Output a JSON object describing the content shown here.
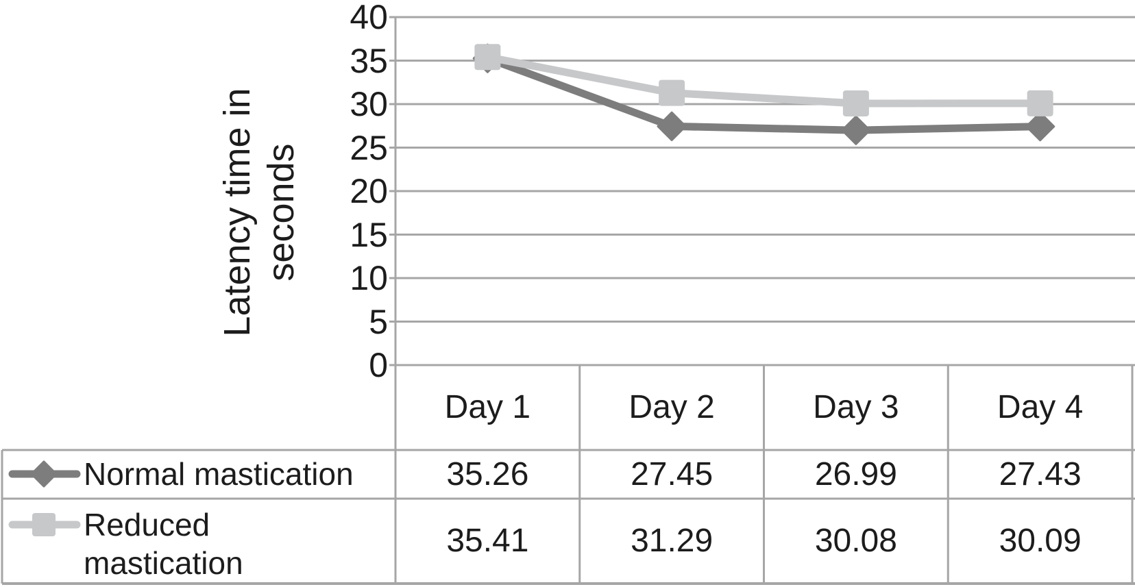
{
  "chart_data": {
    "type": "line",
    "title": "",
    "xlabel": "",
    "ylabel": "Latency time in seconds",
    "categories": [
      "Day 1",
      "Day 2",
      "Day 3",
      "Day 4"
    ],
    "series": [
      {
        "name": "Normal mastication",
        "values": [
          35.26,
          27.45,
          26.99,
          27.43
        ],
        "display_values": [
          "35.26",
          "27.45",
          "26.99",
          "27.43"
        ],
        "color": "#7d7d7d",
        "marker": "diamond"
      },
      {
        "name": "Reduced mastication",
        "values": [
          35.41,
          31.29,
          30.08,
          30.09
        ],
        "display_values": [
          "35.41",
          "31.29",
          "30.08",
          "30.09"
        ],
        "color": "#c7c8ca",
        "marker": "square"
      }
    ],
    "ylim": [
      0,
      40
    ],
    "yticks": [
      0,
      5,
      10,
      15,
      20,
      25,
      30,
      35,
      40
    ],
    "grid": true,
    "legend_position": "table-left",
    "gridline_color": "#a6a6a6",
    "text_color": "#1c1c1c",
    "background_color": "#ffffff"
  }
}
